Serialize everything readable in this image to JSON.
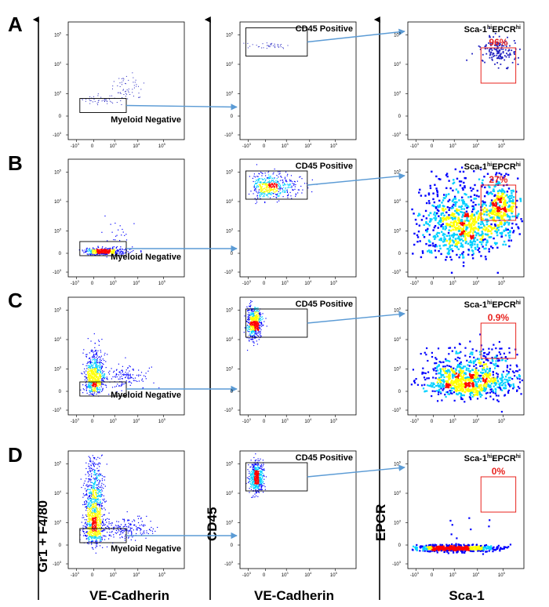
{
  "rows": [
    "A",
    "B",
    "C",
    "D"
  ],
  "axis_titles": {
    "col1_x": "VE-Cadherin",
    "col1_y": "Gr1 + F4/80",
    "col2_x": "VE-Cadherin",
    "col2_y": "CD45",
    "col3_x": "Sca-1",
    "col3_y": "EPCR"
  },
  "gate_labels": {
    "myeloid": "Myeloid Negative",
    "cd45": "CD45 Positive",
    "sca_main": "Sca-1",
    "sca_sup1": "hi",
    "sca_mid": "EPCR",
    "sca_sup2": "hi"
  },
  "x_ticks": [
    "-10",
    "0",
    "10",
    "10",
    "10",
    "10"
  ],
  "x_tick_exps": [
    "3",
    "",
    "3",
    "4",
    "5",
    ""
  ],
  "y_ticks": [
    "-10",
    "0",
    "10",
    "10",
    "10"
  ],
  "y_tick_exps": [
    "3",
    "",
    "3",
    "4",
    "5"
  ],
  "chart_data": [
    {
      "type": "scatter",
      "row": "A",
      "panel": "Gr1+F4/80 vs VE-Cadherin",
      "gate": "Myeloid Negative",
      "density": "sparse"
    },
    {
      "type": "scatter",
      "row": "A",
      "panel": "CD45 vs VE-Cadherin",
      "gate": "CD45 Positive",
      "density": "sparse"
    },
    {
      "type": "scatter",
      "row": "A",
      "panel": "EPCR vs Sca-1",
      "gate": "Sca-1hiEPCRhi",
      "percent": "96%",
      "gate_fraction": 0.96
    },
    {
      "type": "scatter",
      "row": "B",
      "panel": "Gr1+F4/80 vs VE-Cadherin",
      "gate": "Myeloid Negative",
      "density": "moderate"
    },
    {
      "type": "scatter",
      "row": "B",
      "panel": "CD45 vs VE-Cadherin",
      "gate": "CD45 Positive",
      "density": "moderate"
    },
    {
      "type": "scatter",
      "row": "B",
      "panel": "EPCR vs Sca-1",
      "gate": "Sca-1hiEPCRhi",
      "percent": "27%",
      "gate_fraction": 0.27
    },
    {
      "type": "scatter",
      "row": "C",
      "panel": "Gr1+F4/80 vs VE-Cadherin",
      "gate": "Myeloid Negative",
      "density": "dense"
    },
    {
      "type": "scatter",
      "row": "C",
      "panel": "CD45 vs VE-Cadherin",
      "gate": "CD45 Positive",
      "density": "dense"
    },
    {
      "type": "scatter",
      "row": "C",
      "panel": "EPCR vs Sca-1",
      "gate": "Sca-1hiEPCRhi",
      "percent": "0.9%",
      "gate_fraction": 0.009
    },
    {
      "type": "scatter",
      "row": "D",
      "panel": "Gr1+F4/80 vs VE-Cadherin",
      "gate": "Myeloid Negative",
      "density": "very dense"
    },
    {
      "type": "scatter",
      "row": "D",
      "panel": "CD45 vs VE-Cadherin",
      "gate": "CD45 Positive",
      "density": "dense"
    },
    {
      "type": "scatter",
      "row": "D",
      "panel": "EPCR vs Sca-1",
      "gate": "Sca-1hiEPCRhi",
      "percent": "0%",
      "gate_fraction": 0.0
    }
  ],
  "colors": {
    "arrow": "#5b9bd5",
    "gate_box": "#000000",
    "sca_gate": "#e8231e",
    "sparse_dot": "#2020c0",
    "density_low": "#0000ff",
    "density_mid": "#00d0ff",
    "density_high": "#ffff00",
    "density_peak": "#ff0000"
  }
}
